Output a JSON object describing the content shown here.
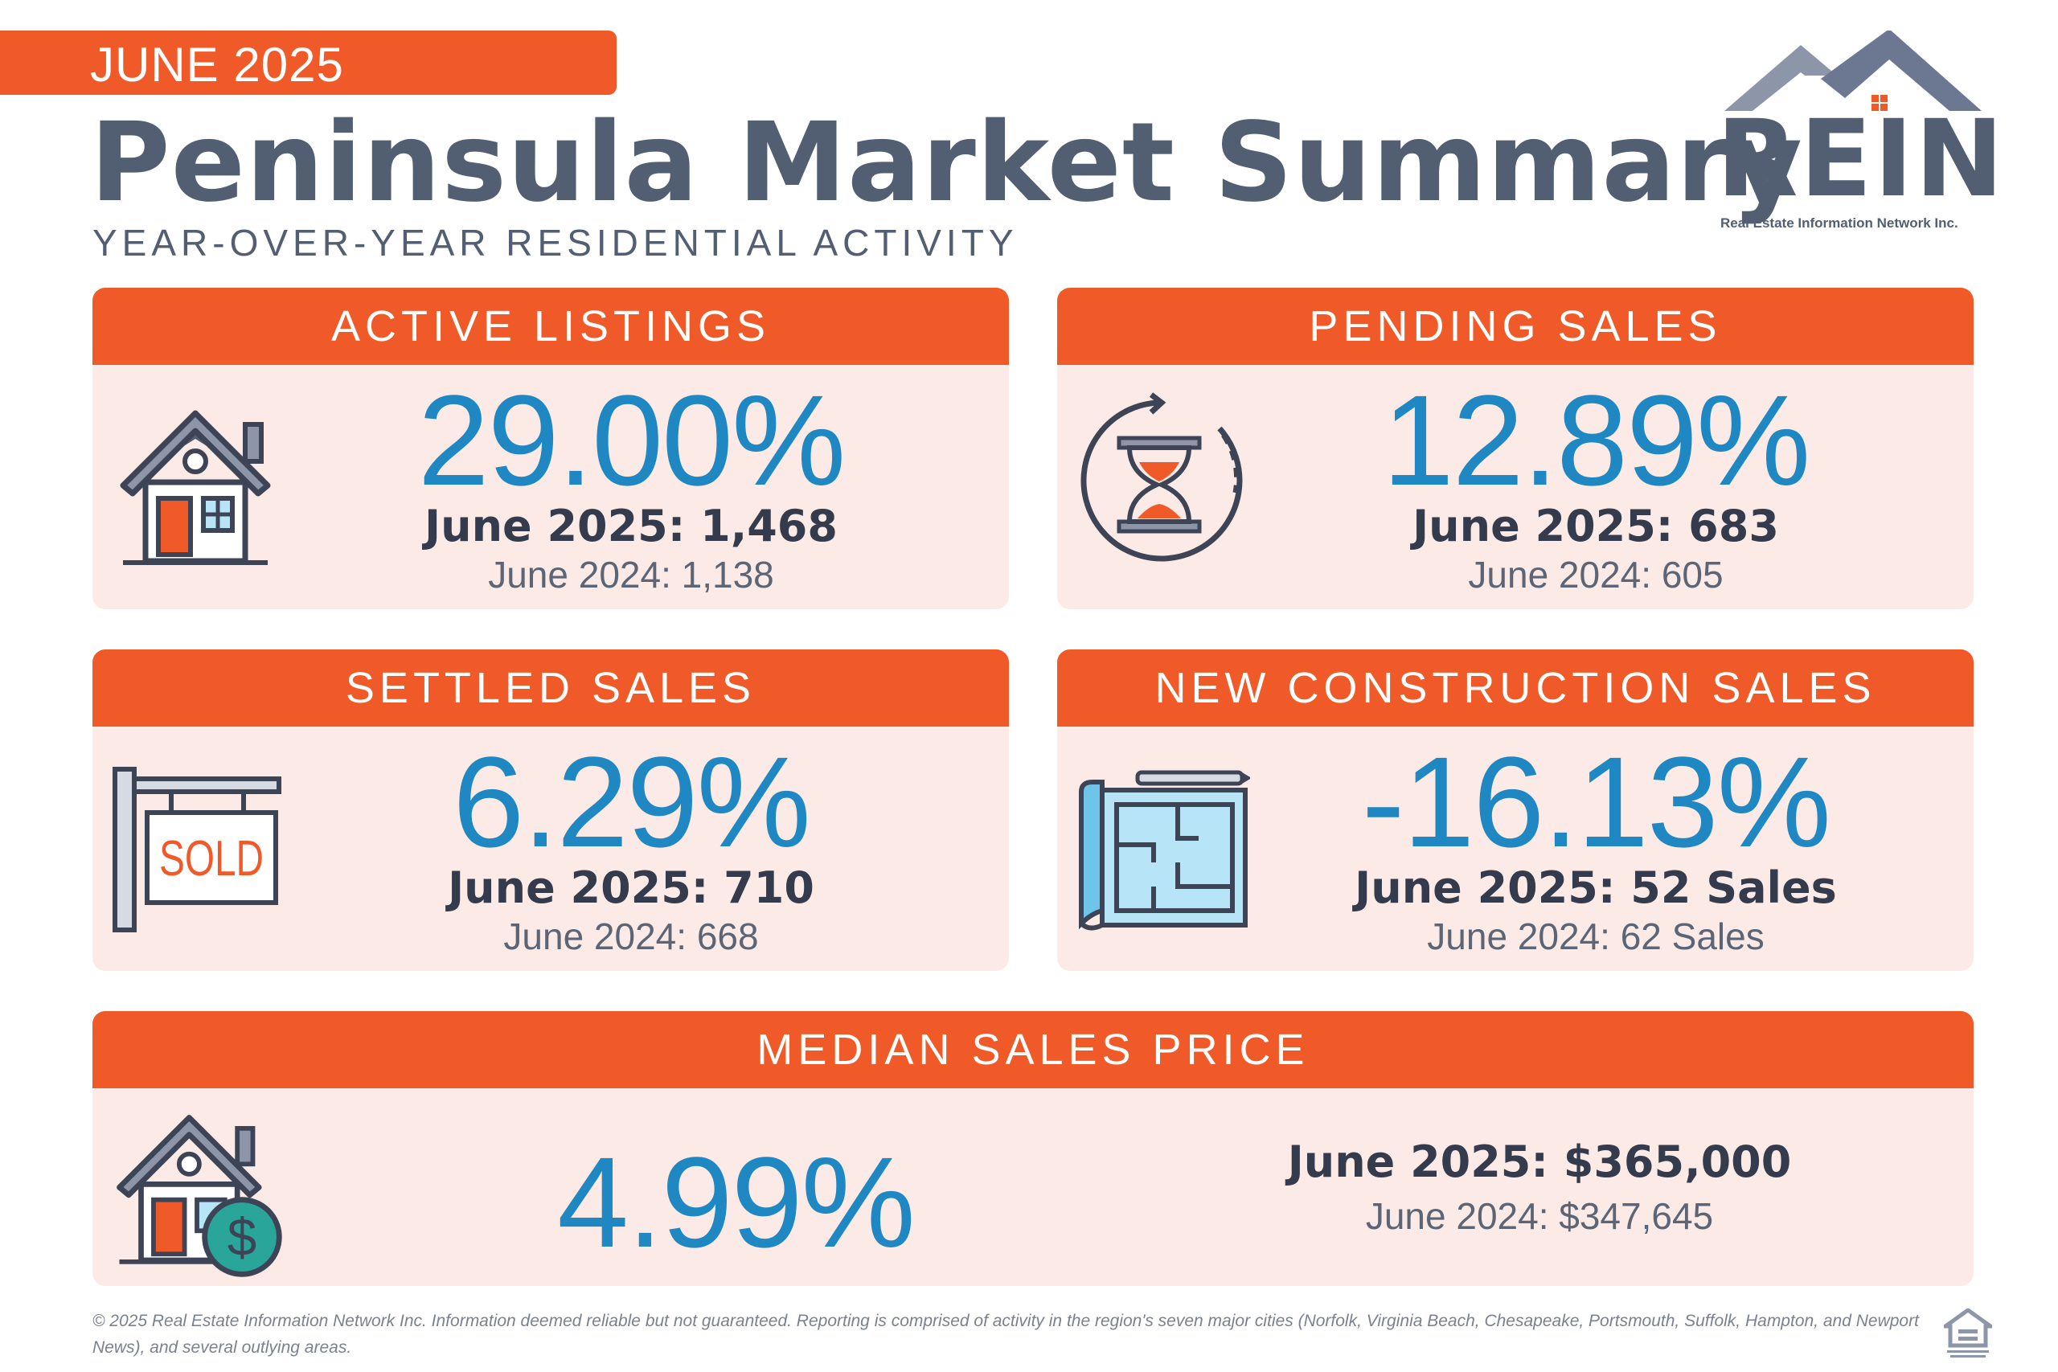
{
  "header": {
    "date_label": "JUNE 2025",
    "title": "Peninsula Market Summary",
    "subtitle": "YEAR-OVER-YEAR RESIDENTIAL ACTIVITY"
  },
  "logo": {
    "text": "REIN",
    "tagline": "Real Estate Information Network Inc.",
    "icon": "roof-logo-icon"
  },
  "colors": {
    "accent": "#f05a28",
    "card_bg": "#fceae6",
    "percent_blue": "#1f87c2",
    "title_slate": "#525e72"
  },
  "cards": {
    "active_listings": {
      "title": "ACTIVE LISTINGS",
      "percent": "29.00%",
      "current": "June 2025: 1,468",
      "previous": "June 2024: 1,138",
      "icon": "house-icon"
    },
    "pending_sales": {
      "title": "PENDING SALES",
      "percent": "12.89%",
      "current": "June 2025: 683",
      "previous": "June 2024: 605",
      "icon": "hourglass-icon"
    },
    "settled_sales": {
      "title": "SETTLED SALES",
      "percent": "6.29%",
      "current": "June 2025: 710",
      "previous": "June 2024: 668",
      "icon": "sold-sign-icon",
      "icon_text": "SOLD"
    },
    "new_construction": {
      "title": "NEW CONSTRUCTION SALES",
      "percent": "-16.13%",
      "current": "June 2025: 52 Sales",
      "previous": "June 2024: 62 Sales",
      "icon": "blueprint-icon"
    },
    "median_price": {
      "title": "MEDIAN SALES PRICE",
      "percent": "4.99%",
      "current": "June 2025: $365,000",
      "previous": "June 2024: $347,645",
      "icon": "house-dollar-icon"
    }
  },
  "footer": {
    "disclaimer": "© 2025 Real Estate Information Network Inc. Information deemed reliable but not guaranteed. Reporting is comprised of activity in the region's seven major cities (Norfolk, Virginia Beach, Chesapeake, Portsmouth, Suffolk, Hampton, and Newport News), and several outlying areas.",
    "badge_icon": "equal-housing-icon"
  }
}
